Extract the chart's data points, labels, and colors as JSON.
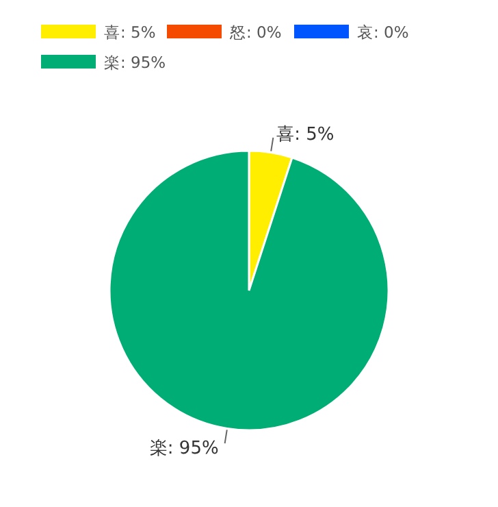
{
  "chart_data": {
    "type": "pie",
    "categories": [
      "喜: 5%",
      "怒: 0%",
      "哀: 0%",
      "楽: 95%"
    ],
    "values": [
      5,
      0,
      0,
      95
    ],
    "colors": [
      "#ffee00",
      "#f44b00",
      "#0055ff",
      "#00ad74"
    ],
    "value_labels": [
      "喜: 5%",
      null,
      null,
      "楽: 95%"
    ],
    "legend": "top"
  }
}
